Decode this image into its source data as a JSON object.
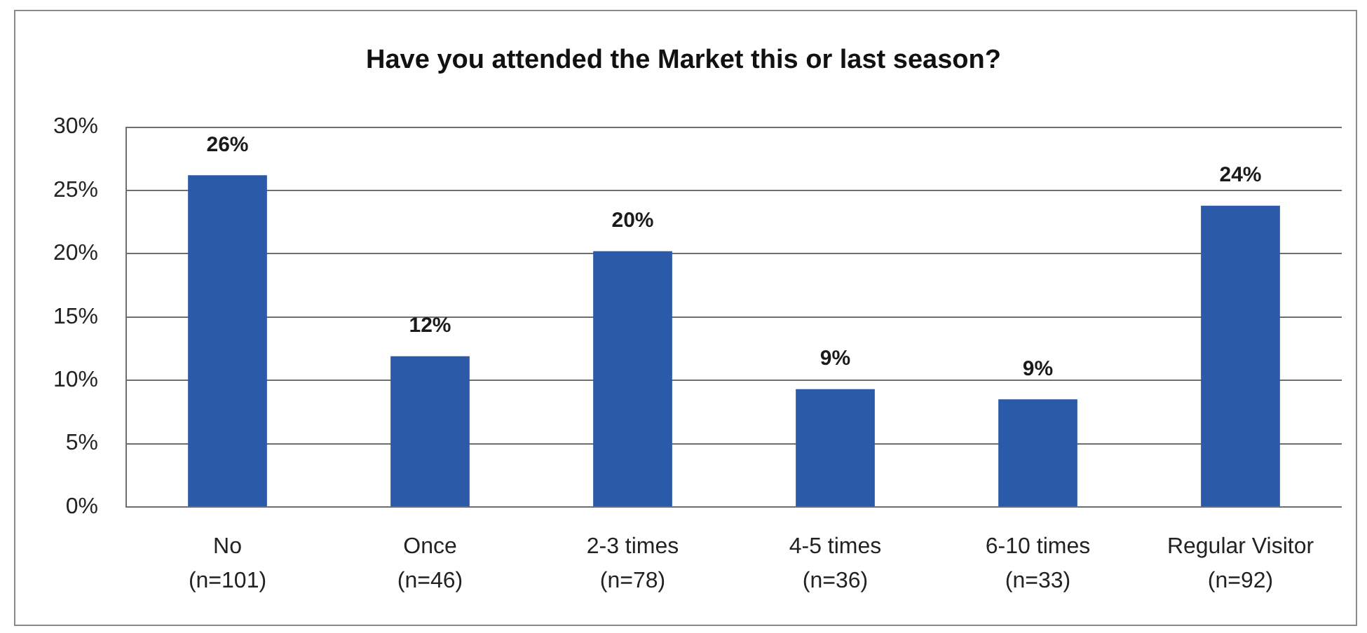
{
  "chart_data": {
    "type": "bar",
    "title": "Have you attended the Market this or last season?",
    "categories": [
      "No\n(n=101)",
      "Once\n(n=46)",
      "2-3 times\n(n=78)",
      "4-5 times\n(n=36)",
      "6-10 times\n(n=33)",
      "Regular Visitor\n(n=92)"
    ],
    "values": [
      26.2,
      11.9,
      20.2,
      9.3,
      8.5,
      23.8
    ],
    "value_labels": [
      "26%",
      "12%",
      "20%",
      "9%",
      "9%",
      "24%"
    ],
    "color": "#2b5aa8",
    "ylim": [
      0,
      30
    ],
    "yticks": [
      {
        "value": 0,
        "label": "0%"
      },
      {
        "value": 5,
        "label": "5%"
      },
      {
        "value": 10,
        "label": "10%"
      },
      {
        "value": 15,
        "label": "15%"
      },
      {
        "value": 20,
        "label": "20%"
      },
      {
        "value": 25,
        "label": "25%"
      },
      {
        "value": 30,
        "label": "30%"
      }
    ],
    "grid": "y"
  }
}
